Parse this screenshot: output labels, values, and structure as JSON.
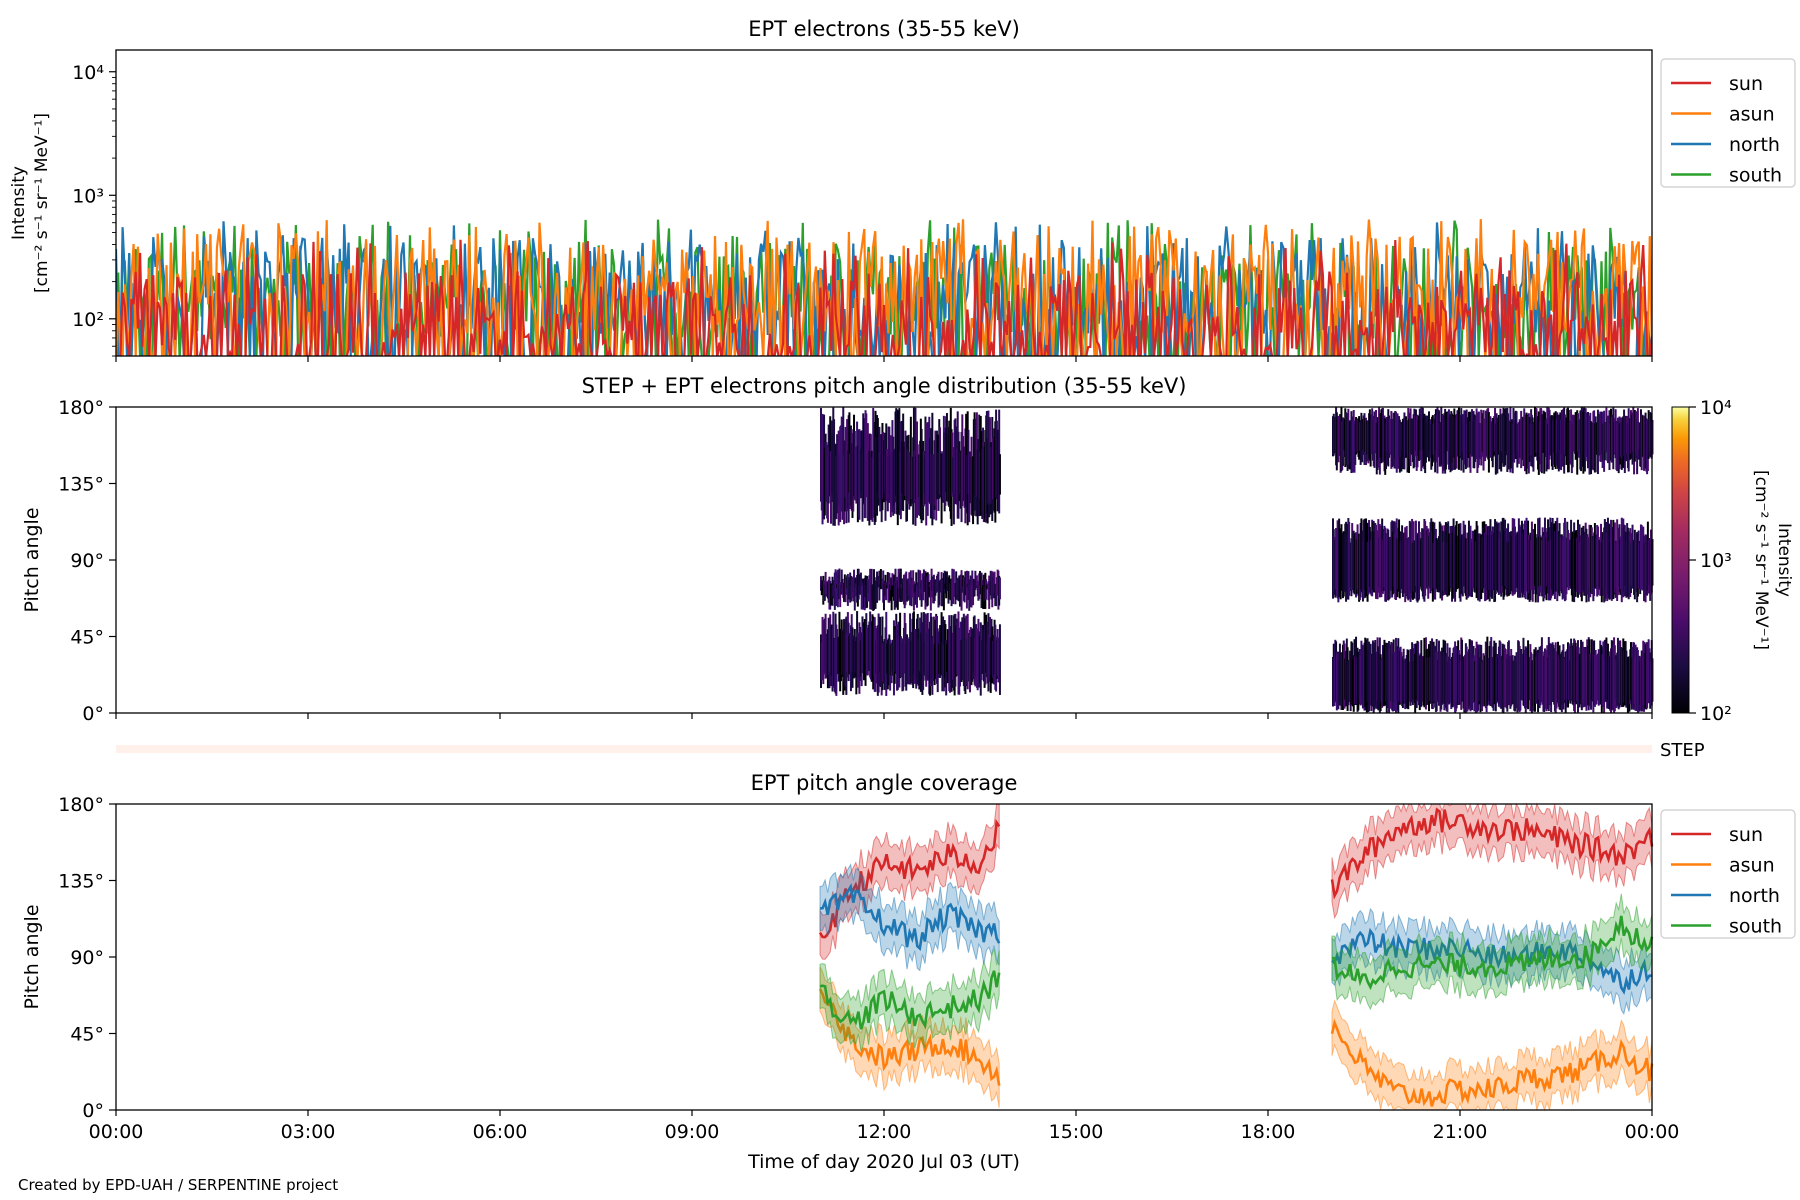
{
  "figure": {
    "footer_text": "Created by EPD-UAH / SERPENTINE project",
    "x_axis_label": "Time of day 2020 Jul 03 (UT)",
    "x_tick_labels": [
      "00:00",
      "03:00",
      "06:00",
      "09:00",
      "12:00",
      "15:00",
      "18:00",
      "21:00",
      "00:00"
    ]
  },
  "chart_data": [
    {
      "type": "line",
      "title": "EPT electrons (35-55 keV)",
      "ylabel": [
        "Intensity",
        "[cm⁻² s⁻¹ sr⁻¹ MeV⁻¹]"
      ],
      "yscale": "log",
      "ylim": [
        50,
        15000
      ],
      "ytick_labels": [
        "10²",
        "10³",
        "10⁴"
      ],
      "xlim_hours": [
        0,
        24
      ],
      "legend_position": "outside-right-top",
      "series": [
        {
          "name": "sun",
          "color": "#d62728",
          "baseline": 100,
          "peak_max": 440
        },
        {
          "name": "asun",
          "color": "#ff7f0e",
          "baseline": 190,
          "peak_max": 650
        },
        {
          "name": "north",
          "color": "#1f77b4",
          "baseline": 180,
          "peak_max": 620
        },
        {
          "name": "south",
          "color": "#2ca02c",
          "baseline": 170,
          "peak_max": 640
        }
      ]
    },
    {
      "type": "heatmap",
      "title": "STEP + EPT electrons pitch angle distribution (35-55 keV)",
      "ylabel": "Pitch angle",
      "ytick_labels": [
        "0°",
        "45°",
        "90°",
        "135°",
        "180°"
      ],
      "ylim": [
        0,
        180
      ],
      "colorbar": {
        "label": [
          "Intensity",
          "[cm⁻² s⁻¹ sr⁻¹ MeV⁻¹]"
        ],
        "scale": "log",
        "range": [
          100,
          10000
        ],
        "tick_labels": [
          "10²",
          "10³",
          "10⁴"
        ],
        "colormap": "inferno"
      },
      "data_windows_hours": [
        [
          11.0,
          13.8
        ],
        [
          19.0,
          24.0
        ]
      ]
    },
    {
      "type": "area",
      "label": "STEP",
      "color": "#fff0ea",
      "xlim_hours": [
        0,
        24
      ]
    },
    {
      "type": "line",
      "title": "EPT pitch angle coverage",
      "ylabel": "Pitch angle",
      "ytick_labels": [
        "0°",
        "45°",
        "90°",
        "135°",
        "180°"
      ],
      "ylim": [
        0,
        180
      ],
      "legend_position": "outside-right-top",
      "series": [
        {
          "name": "sun",
          "color": "#d62728",
          "x": [
            11.0,
            11.5,
            12.0,
            12.5,
            13.0,
            13.5,
            13.8,
            19.0,
            19.5,
            20.0,
            20.5,
            21.0,
            21.5,
            22.0,
            22.5,
            23.0,
            23.5,
            24.0
          ],
          "y": [
            100,
            130,
            145,
            140,
            150,
            145,
            165,
            130,
            150,
            165,
            170,
            170,
            165,
            165,
            160,
            155,
            150,
            160
          ]
        },
        {
          "name": "asun",
          "color": "#ff7f0e",
          "x": [
            11.0,
            11.5,
            12.0,
            12.5,
            13.0,
            13.5,
            13.8,
            19.0,
            19.5,
            20.0,
            20.5,
            21.0,
            21.5,
            22.0,
            22.5,
            23.0,
            23.5,
            24.0
          ],
          "y": [
            75,
            40,
            30,
            35,
            40,
            30,
            20,
            50,
            25,
            10,
            8,
            12,
            12,
            18,
            20,
            25,
            35,
            22
          ]
        },
        {
          "name": "north",
          "color": "#1f77b4",
          "x": [
            11.0,
            11.5,
            12.0,
            12.5,
            13.0,
            13.5,
            13.8,
            19.0,
            19.5,
            20.0,
            20.5,
            21.0,
            21.5,
            22.0,
            22.5,
            23.0,
            23.5,
            24.0
          ],
          "y": [
            115,
            125,
            110,
            100,
            115,
            105,
            105,
            90,
            100,
            95,
            95,
            95,
            90,
            90,
            95,
            90,
            75,
            85
          ]
        },
        {
          "name": "south",
          "color": "#2ca02c",
          "x": [
            11.0,
            11.5,
            12.0,
            12.5,
            13.0,
            13.5,
            13.8,
            19.0,
            19.5,
            20.0,
            20.5,
            21.0,
            21.5,
            22.0,
            22.5,
            23.0,
            23.5,
            24.0
          ],
          "y": [
            70,
            50,
            65,
            55,
            60,
            65,
            80,
            85,
            75,
            85,
            85,
            85,
            85,
            85,
            90,
            90,
            110,
            95
          ]
        }
      ]
    }
  ]
}
